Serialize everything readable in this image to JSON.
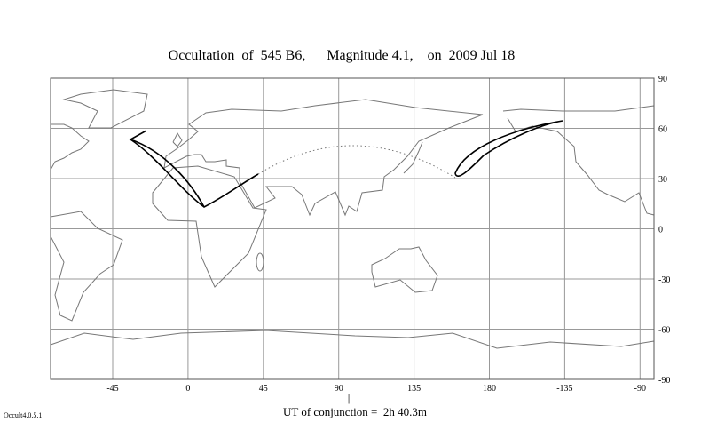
{
  "title": "Occultation  of  545 B6,      Magnitude 4.1,    on  2009 Jul 18",
  "longitude_labels": [
    "-45",
    "0",
    "45",
    "90",
    "135",
    "180",
    "-135",
    "-90"
  ],
  "latitude_labels": [
    "90",
    "60",
    "30",
    "0",
    "-30",
    "-60",
    "-90"
  ],
  "conjunction_marker": "|",
  "conjunction_label": "UT of conjunction =  2h 40.3m",
  "version": "Occult4.0.5.1"
}
